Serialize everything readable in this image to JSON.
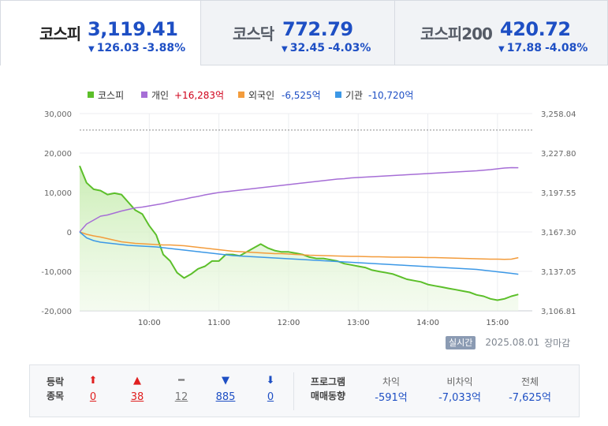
{
  "tabs": [
    {
      "name": "코스피",
      "value": "3,119.41",
      "change": "126.03",
      "change_pct": "-3.88%",
      "direction": "down"
    },
    {
      "name": "코스닥",
      "value": "772.79",
      "change": "32.45",
      "change_pct": "-4.03%",
      "direction": "down"
    },
    {
      "name": "코스피200",
      "value": "420.72",
      "change": "17.88",
      "change_pct": "-4.08%",
      "direction": "down"
    }
  ],
  "legend": [
    {
      "name": "코스피",
      "value": "",
      "color": "#5cbf2a"
    },
    {
      "name": "개인",
      "value": "+16,283억",
      "color": "#a66ed6",
      "value_color": "#d0021b"
    },
    {
      "name": "외국인",
      "value": "-6,525억",
      "color": "#f39c3c",
      "value_color": "#1e4fc4"
    },
    {
      "name": "기관",
      "value": "-10,720억",
      "color": "#3c98e6",
      "value_color": "#1e4fc4"
    }
  ],
  "chart_data": {
    "type": "line",
    "x_ticks": [
      "10:00",
      "11:00",
      "12:00",
      "13:00",
      "14:00",
      "15:00"
    ],
    "y_left_ticks": [
      "30,000",
      "20,000",
      "10,000",
      "0",
      "-10,000",
      "-20,000"
    ],
    "y_left_range": [
      -20000,
      30000
    ],
    "y_right_ticks": [
      "3,258.04",
      "3,227.80",
      "3,197.55",
      "3,167.30",
      "3,137.05",
      "3,106.81"
    ],
    "y_right_range": [
      3106.81,
      3258.04
    ],
    "reference_line": 3245.44,
    "x": [
      0,
      0.1,
      0.2,
      0.3,
      0.4,
      0.5,
      0.6,
      0.7,
      0.8,
      0.9,
      1.0,
      1.1,
      1.2,
      1.3,
      1.4,
      1.5,
      1.6,
      1.7,
      1.8,
      1.9,
      2.0,
      2.1,
      2.2,
      2.3,
      2.4,
      2.5,
      2.6,
      2.7,
      2.8,
      2.9,
      3.0,
      3.1,
      3.2,
      3.3,
      3.4,
      3.5,
      3.6,
      3.7,
      3.8,
      3.9,
      4.0,
      4.1,
      4.2,
      4.3,
      4.4,
      4.5,
      4.6,
      4.7,
      4.8,
      4.9,
      5.0,
      5.1,
      5.2,
      5.3,
      5.4,
      5.5,
      5.6,
      5.7,
      5.8,
      5.9,
      6.0,
      6.1,
      6.2,
      6.3
    ],
    "series": [
      {
        "name": "코스피",
        "axis": "right",
        "color": "#5cbf2a",
        "values": [
          3218,
          3205,
          3200,
          3199,
          3196,
          3197,
          3196,
          3190,
          3184,
          3181,
          3172,
          3165,
          3150,
          3145,
          3136,
          3132,
          3135,
          3139,
          3141,
          3145,
          3145,
          3150,
          3150,
          3149,
          3152,
          3155,
          3158,
          3155,
          3153,
          3152,
          3152,
          3151,
          3150,
          3148,
          3147,
          3147,
          3146,
          3145,
          3143,
          3142,
          3141,
          3140,
          3138,
          3137,
          3136,
          3135,
          3133,
          3131,
          3130,
          3129,
          3127,
          3126,
          3125,
          3124,
          3123,
          3122,
          3121,
          3119,
          3118,
          3116,
          3115,
          3116,
          3118,
          3119.41
        ]
      },
      {
        "name": "개인",
        "axis": "left",
        "color": "#a66ed6",
        "values": [
          0,
          2000,
          3000,
          4000,
          4300,
          4800,
          5300,
          5700,
          6100,
          6300,
          6600,
          6900,
          7200,
          7600,
          8000,
          8300,
          8700,
          9000,
          9400,
          9700,
          10000,
          10200,
          10400,
          10600,
          10800,
          11000,
          11200,
          11400,
          11600,
          11800,
          12000,
          12200,
          12400,
          12600,
          12800,
          13000,
          13200,
          13400,
          13500,
          13700,
          13800,
          13900,
          14000,
          14100,
          14200,
          14300,
          14400,
          14500,
          14600,
          14700,
          14800,
          14900,
          15000,
          15100,
          15200,
          15300,
          15400,
          15500,
          15650,
          15800,
          16000,
          16200,
          16300,
          16283
        ]
      },
      {
        "name": "외국인",
        "axis": "left",
        "color": "#f39c3c",
        "values": [
          0,
          -600,
          -1000,
          -1300,
          -1700,
          -2100,
          -2500,
          -2700,
          -2900,
          -3000,
          -3100,
          -3200,
          -3300,
          -3300,
          -3400,
          -3500,
          -3700,
          -3900,
          -4100,
          -4300,
          -4500,
          -4700,
          -4900,
          -5000,
          -5100,
          -5200,
          -5300,
          -5400,
          -5500,
          -5500,
          -5600,
          -5700,
          -5800,
          -5900,
          -5950,
          -6000,
          -6050,
          -6100,
          -6150,
          -6200,
          -6200,
          -6250,
          -6300,
          -6300,
          -6350,
          -6400,
          -6400,
          -6400,
          -6450,
          -6450,
          -6500,
          -6500,
          -6550,
          -6600,
          -6650,
          -6700,
          -6750,
          -6800,
          -6850,
          -6900,
          -6900,
          -6950,
          -6900,
          -6525
        ]
      },
      {
        "name": "기관",
        "axis": "left",
        "color": "#3c98e6",
        "values": [
          0,
          -1500,
          -2200,
          -2600,
          -2800,
          -3000,
          -3200,
          -3400,
          -3500,
          -3600,
          -3700,
          -3800,
          -4000,
          -4200,
          -4400,
          -4600,
          -4800,
          -5000,
          -5200,
          -5400,
          -5600,
          -5800,
          -6000,
          -6100,
          -6200,
          -6300,
          -6400,
          -6500,
          -6600,
          -6700,
          -6800,
          -6900,
          -7000,
          -7100,
          -7200,
          -7300,
          -7400,
          -7500,
          -7600,
          -7700,
          -7800,
          -7900,
          -8000,
          -8100,
          -8200,
          -8300,
          -8400,
          -8500,
          -8600,
          -8700,
          -8800,
          -8900,
          -9000,
          -9100,
          -9200,
          -9300,
          -9400,
          -9500,
          -9700,
          -9900,
          -10100,
          -10300,
          -10500,
          -10720
        ]
      }
    ]
  },
  "status": {
    "badge": "실시간",
    "date": "2025.08.01",
    "closed": "장마감"
  },
  "breadth": {
    "label_line1": "등락",
    "label_line2": "종목",
    "items": [
      {
        "icon": "⬆",
        "count": "0",
        "color": "red"
      },
      {
        "icon": "▲",
        "count": "38",
        "color": "red"
      },
      {
        "icon": "━",
        "count": "12",
        "color": "gray"
      },
      {
        "icon": "▼",
        "count": "885",
        "color": "blue"
      },
      {
        "icon": "⬇",
        "count": "0",
        "color": "blue"
      }
    ]
  },
  "program": {
    "label_line1": "프로그램",
    "label_line2": "매매동향",
    "items": [
      {
        "title": "차익",
        "value": "-591억"
      },
      {
        "title": "비차익",
        "value": "-7,033억"
      },
      {
        "title": "전체",
        "value": "-7,625억"
      }
    ]
  }
}
